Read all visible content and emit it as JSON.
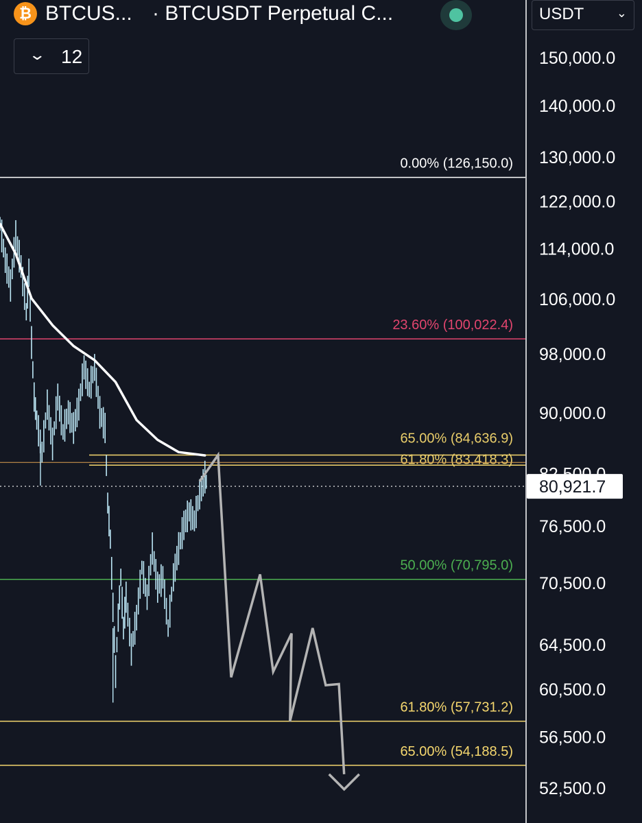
{
  "header": {
    "symbol_short": "BTCUS...",
    "title": "· BTCUSDT Perpetual C...",
    "interval_count": "12",
    "currency": "USDT",
    "logo_glyph": "₿"
  },
  "chart_data": {
    "type": "line",
    "yaxis": {
      "ticks": [
        150000,
        140000,
        130000,
        122000,
        114000,
        106000,
        98000,
        90000,
        82500,
        76500,
        70500,
        64500,
        60500,
        56500,
        52500
      ],
      "tick_labels": [
        "150,000.0",
        "140,000.0",
        "130,000.0",
        "122,000.0",
        "114,000.0",
        "106,000.0",
        "98,000.0",
        "90,000.0",
        "82,500.0",
        "76,500.0",
        "70,500.0",
        "64,500.0",
        "60,500.0",
        "56,500.0",
        "52,500.0"
      ],
      "scale": "log"
    },
    "last_price": 80921.7,
    "last_price_label": "80,921.7",
    "fib_levels": [
      {
        "label": "0.00% (126,150.0)",
        "price": 126150.0,
        "color": "#ffffff"
      },
      {
        "label": "23.60% (100,022.4)",
        "price": 100022.4,
        "color": "#e2456e"
      },
      {
        "label": "65.00% (84,636.9)",
        "price": 84636.9,
        "color": "#f5d76e"
      },
      {
        "label": "61.80% (83,418.3)",
        "price": 83418.3,
        "color": "#f5d76e"
      },
      {
        "label": "50.00% (70,795.0)",
        "price": 70795.0,
        "color": "#4caf50"
      },
      {
        "label": "61.80% (57,731.2)",
        "price": 57731.2,
        "color": "#f5d76e"
      },
      {
        "label": "65.00% (54,188.5)",
        "price": 54188.5,
        "color": "#f5d76e"
      }
    ],
    "colors": {
      "candles": "#bde8f7",
      "moving_average": "#ffffff",
      "projection": "#b4b4b4",
      "background": "#131722"
    },
    "moving_average": [
      [
        0.0,
        118000
      ],
      [
        0.03,
        113000
      ],
      [
        0.06,
        106000
      ],
      [
        0.1,
        102000
      ],
      [
        0.14,
        99000
      ],
      [
        0.18,
        97000
      ],
      [
        0.22,
        94000
      ],
      [
        0.26,
        89000
      ],
      [
        0.3,
        86500
      ],
      [
        0.34,
        85000
      ],
      [
        0.39,
        84600
      ]
    ],
    "price_series": [
      [
        0.0,
        118000
      ],
      [
        0.01,
        112000
      ],
      [
        0.02,
        108000
      ],
      [
        0.03,
        116000
      ],
      [
        0.04,
        111000
      ],
      [
        0.05,
        104000
      ],
      [
        0.055,
        110000
      ],
      [
        0.06,
        99500
      ],
      [
        0.065,
        92000
      ],
      [
        0.07,
        89000
      ],
      [
        0.08,
        85000
      ],
      [
        0.09,
        91000
      ],
      [
        0.1,
        86000
      ],
      [
        0.11,
        92000
      ],
      [
        0.12,
        87500
      ],
      [
        0.13,
        90000
      ],
      [
        0.14,
        88000
      ],
      [
        0.15,
        91000
      ],
      [
        0.16,
        96000
      ],
      [
        0.17,
        93000
      ],
      [
        0.18,
        96000
      ],
      [
        0.19,
        90000
      ],
      [
        0.2,
        88000
      ],
      [
        0.205,
        79000
      ],
      [
        0.21,
        75000
      ],
      [
        0.215,
        68000
      ],
      [
        0.22,
        62000
      ],
      [
        0.225,
        67000
      ],
      [
        0.23,
        71000
      ],
      [
        0.235,
        66000
      ],
      [
        0.24,
        69000
      ],
      [
        0.25,
        64000
      ],
      [
        0.26,
        67000
      ],
      [
        0.27,
        72000
      ],
      [
        0.28,
        69000
      ],
      [
        0.29,
        74000
      ],
      [
        0.3,
        70000
      ],
      [
        0.31,
        71000
      ],
      [
        0.32,
        66000
      ],
      [
        0.33,
        71000
      ],
      [
        0.34,
        74000
      ],
      [
        0.35,
        76500
      ],
      [
        0.36,
        78000
      ],
      [
        0.37,
        77000
      ],
      [
        0.38,
        80000
      ],
      [
        0.39,
        82000
      ],
      [
        0.395,
        80921.7
      ]
    ],
    "projection_path": [
      [
        0.38,
        81500
      ],
      [
        0.415,
        84636.9
      ],
      [
        0.44,
        61500
      ],
      [
        0.495,
        71300
      ],
      [
        0.52,
        62000
      ],
      [
        0.555,
        65500
      ],
      [
        0.552,
        57731.2
      ],
      [
        0.595,
        66000
      ],
      [
        0.62,
        60800
      ],
      [
        0.645,
        60900
      ],
      [
        0.655,
        53500
      ]
    ],
    "projection_arrow_tip": [
      0.655,
      53500
    ]
  }
}
